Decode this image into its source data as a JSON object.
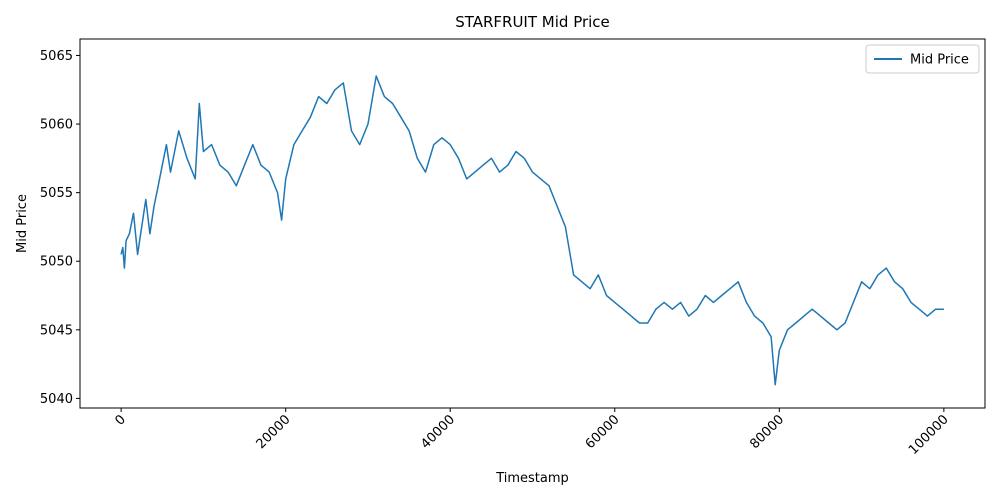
{
  "chart_data": {
    "type": "line",
    "title": "STARFRUIT Mid Price",
    "xlabel": "Timestamp",
    "ylabel": "Mid Price",
    "xlim": [
      -5000,
      105000
    ],
    "ylim": [
      5039.3,
      5066.2
    ],
    "xticks": [
      0,
      20000,
      40000,
      60000,
      80000,
      100000
    ],
    "xtick_labels": [
      "0",
      "20000",
      "40000",
      "60000",
      "80000",
      "100000"
    ],
    "xtick_rotation": 45,
    "yticks": [
      5040,
      5045,
      5050,
      5055,
      5060,
      5065
    ],
    "ytick_labels": [
      "5040",
      "5045",
      "5050",
      "5055",
      "5060",
      "5065"
    ],
    "grid": false,
    "legend": {
      "position": "top-right",
      "entries": [
        "Mid Price"
      ]
    },
    "series": [
      {
        "name": "Mid Price",
        "color": "#1f77b4",
        "x": [
          0,
          200,
          400,
          600,
          1000,
          1500,
          2000,
          2500,
          3000,
          3500,
          4000,
          4500,
          5000,
          5500,
          6000,
          6500,
          7000,
          8000,
          9000,
          9500,
          10000,
          11000,
          12000,
          13000,
          14000,
          15000,
          16000,
          17000,
          18000,
          19000,
          19500,
          20000,
          21000,
          22000,
          23000,
          24000,
          25000,
          26000,
          27000,
          28000,
          29000,
          30000,
          31000,
          32000,
          33000,
          34000,
          35000,
          36000,
          37000,
          38000,
          39000,
          40000,
          41000,
          42000,
          43000,
          44000,
          45000,
          46000,
          47000,
          48000,
          49000,
          50000,
          51000,
          52000,
          53000,
          54000,
          55000,
          56000,
          57000,
          58000,
          59000,
          60000,
          61000,
          62000,
          63000,
          64000,
          65000,
          66000,
          67000,
          68000,
          69000,
          70000,
          71000,
          72000,
          73000,
          74000,
          75000,
          76000,
          77000,
          78000,
          79000,
          79500,
          80000,
          81000,
          82000,
          83000,
          84000,
          85000,
          86000,
          87000,
          88000,
          89000,
          90000,
          91000,
          92000,
          93000,
          94000,
          95000,
          96000,
          97000,
          98000,
          99000,
          100000
        ],
        "y": [
          5050.5,
          5051.0,
          5049.5,
          5051.5,
          5052.0,
          5053.5,
          5050.5,
          5052.5,
          5054.5,
          5052.0,
          5054.0,
          5055.5,
          5057.0,
          5058.5,
          5056.5,
          5058.0,
          5059.5,
          5057.5,
          5056.0,
          5061.5,
          5058.0,
          5058.5,
          5057.0,
          5056.5,
          5055.5,
          5057.0,
          5058.5,
          5057.0,
          5056.5,
          5055.0,
          5053.0,
          5056.0,
          5058.5,
          5059.5,
          5060.5,
          5062.0,
          5061.5,
          5062.5,
          5063.0,
          5059.5,
          5058.5,
          5060.0,
          5063.5,
          5062.0,
          5061.5,
          5060.5,
          5059.5,
          5057.5,
          5056.5,
          5058.5,
          5059.0,
          5058.5,
          5057.5,
          5056.0,
          5056.5,
          5057.0,
          5057.5,
          5056.5,
          5057.0,
          5058.0,
          5057.5,
          5056.5,
          5056.0,
          5055.5,
          5054.0,
          5052.5,
          5049.0,
          5048.5,
          5048.0,
          5049.0,
          5047.5,
          5047.0,
          5046.5,
          5046.0,
          5045.5,
          5045.5,
          5046.5,
          5047.0,
          5046.5,
          5047.0,
          5046.0,
          5046.5,
          5047.5,
          5047.0,
          5047.5,
          5048.0,
          5048.5,
          5047.0,
          5046.0,
          5045.5,
          5044.5,
          5041.0,
          5043.5,
          5045.0,
          5045.5,
          5046.0,
          5046.5,
          5046.0,
          5045.5,
          5045.0,
          5045.5,
          5047.0,
          5048.5,
          5048.0,
          5049.0,
          5049.5,
          5048.5,
          5048.0,
          5047.0,
          5046.5,
          5046.0,
          5046.5,
          5046.5
        ]
      }
    ]
  }
}
